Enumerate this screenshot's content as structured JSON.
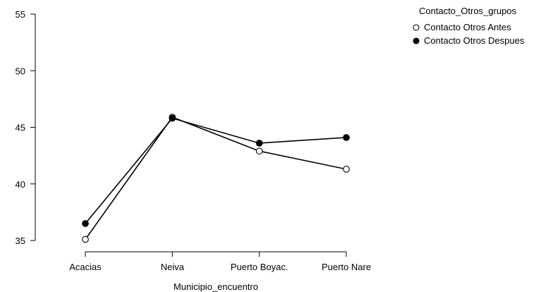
{
  "chart_data": {
    "type": "line",
    "title": "",
    "xlabel": "Municipio_encuentro",
    "ylabel": "",
    "categories": [
      "Acacias",
      "Neiva",
      "Puerto Boyac.",
      "Puerto Nare"
    ],
    "ylim": [
      35,
      55
    ],
    "yticks": [
      35,
      40,
      45,
      50,
      55
    ],
    "grid": false,
    "legend": {
      "title": "Contacto_Otros_grupos",
      "position": "top-right"
    },
    "series": [
      {
        "name": "Contacto Otros Antes",
        "marker": "open-circle",
        "color": "#000000",
        "values": [
          35.1,
          45.9,
          42.9,
          41.3
        ]
      },
      {
        "name": "Contacto Otros Despues",
        "marker": "filled-circle",
        "color": "#000000",
        "values": [
          36.5,
          45.8,
          43.6,
          44.1
        ]
      }
    ]
  }
}
